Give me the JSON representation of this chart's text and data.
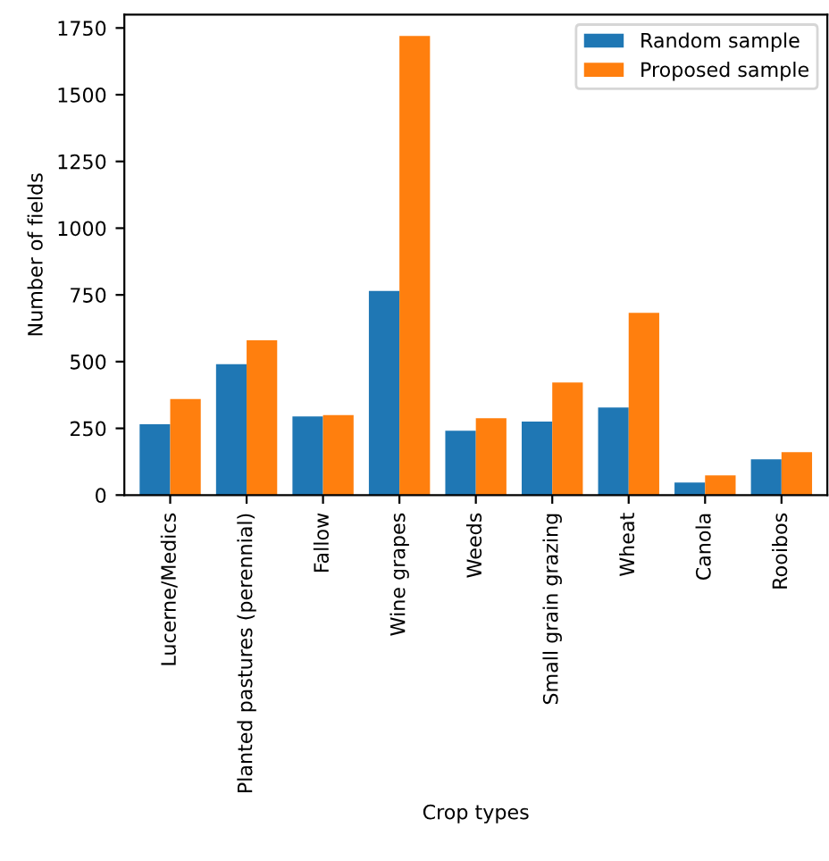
{
  "chart_data": {
    "type": "bar",
    "xlabel": "Crop types",
    "ylabel": "Number of fields",
    "categories": [
      "Lucerne/Medics",
      "Planted pastures (perennial)",
      "Fallow",
      "Wine grapes",
      "Weeds",
      "Small grain grazing",
      "Wheat",
      "Canola",
      "Rooibos"
    ],
    "series": [
      {
        "name": "Random sample",
        "color": "#1f77b4",
        "values": [
          265,
          490,
          295,
          765,
          241,
          275,
          328,
          47,
          134
        ]
      },
      {
        "name": "Proposed sample",
        "color": "#ff7f0e",
        "values": [
          360,
          580,
          300,
          1720,
          288,
          422,
          683,
          74,
          161
        ]
      }
    ],
    "ylim": [
      0,
      1800
    ],
    "yticks": [
      0,
      250,
      500,
      750,
      1000,
      1250,
      1500,
      1750
    ],
    "legend": "top right",
    "grid": false
  }
}
